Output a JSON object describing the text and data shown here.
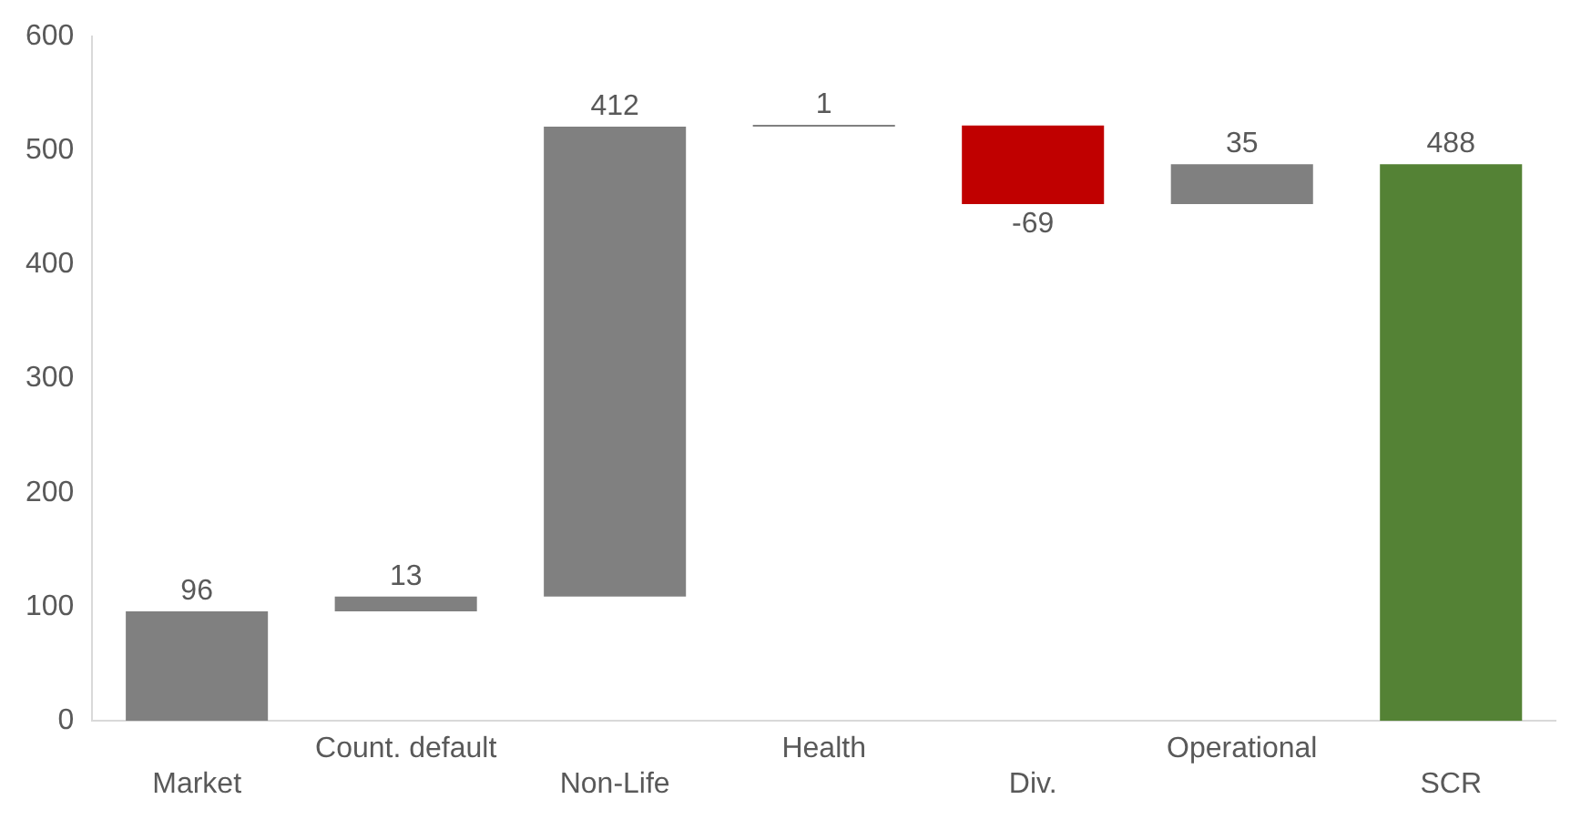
{
  "chart_data": {
    "type": "bar",
    "categories": [
      "Market",
      "Count. default",
      "Non-Life",
      "Health",
      "Div.",
      "Operational",
      "SCR"
    ],
    "values": [
      96,
      13,
      412,
      1,
      -69,
      35,
      488
    ],
    "base": [
      0,
      96,
      109,
      521,
      522,
      453,
      0
    ],
    "colors": [
      "#808080",
      "#808080",
      "#808080",
      "#808080",
      "#c00000",
      "#808080",
      "#548235"
    ],
    "ylim": [
      0,
      600
    ],
    "yticks": [
      0,
      100,
      200,
      300,
      400,
      500,
      600
    ],
    "grid": false,
    "data_labels": true
  }
}
